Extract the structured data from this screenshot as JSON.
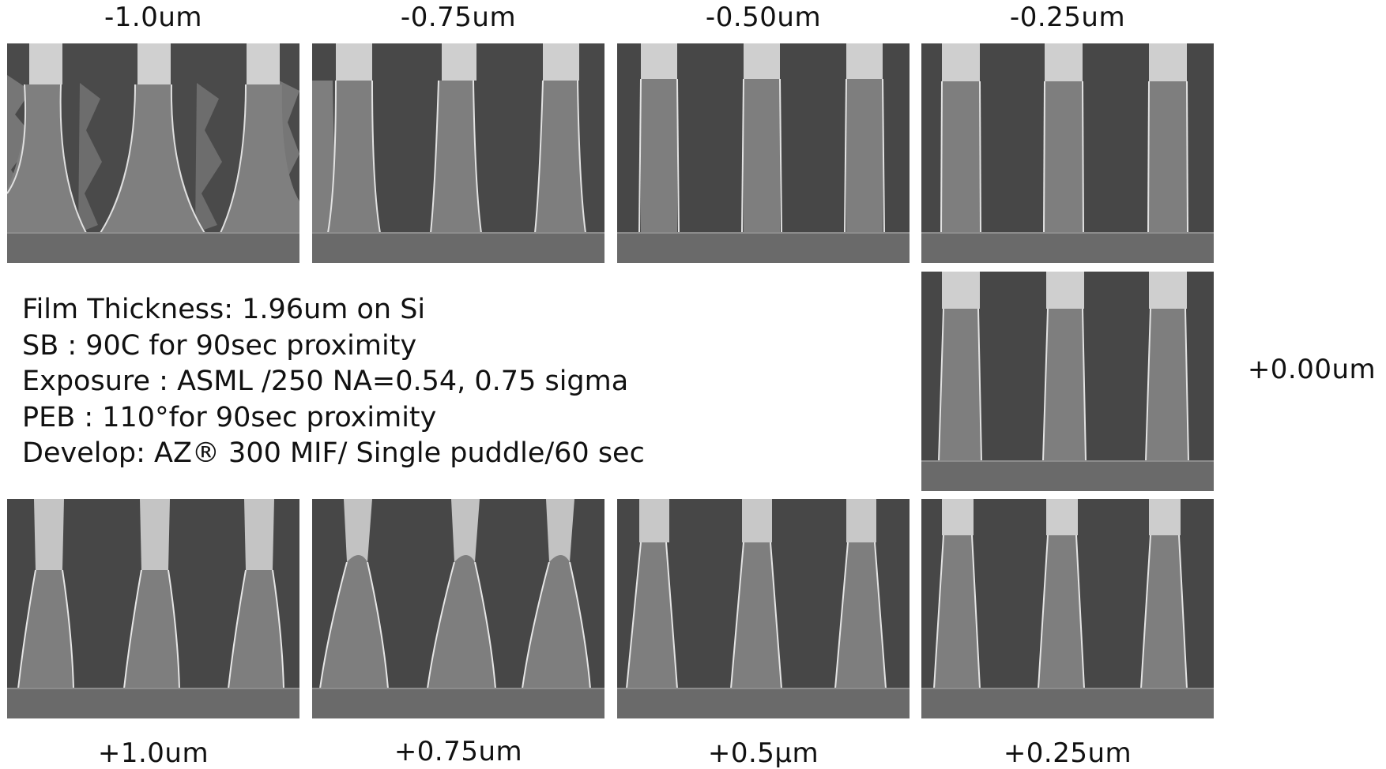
{
  "focus_labels": {
    "m100": "-1.0um",
    "m075": "-0.75um",
    "m050": "-0.50um",
    "m025": "-0.25um",
    "p000": "+0.00um",
    "p100": "+1.0um",
    "p075": "+0.75um",
    "p050": "+0.5μm",
    "p025": "+0.25um"
  },
  "process_notes": [
    "Film Thickness: 1.96um on Si",
    "SB :  90C for 90sec proximity",
    "Exposure : ASML /250  NA=0.54, 0.75 sigma",
    "PEB :  110°for 90sec proximity",
    "Develop: AZ® 300 MIF/ Single puddle/60 sec"
  ],
  "panels": [
    {
      "focus_um": -1.0,
      "profile": "strongly-flared-rough-sidewalls"
    },
    {
      "focus_um": -0.75,
      "profile": "slightly-flared"
    },
    {
      "focus_um": -0.5,
      "profile": "vertical"
    },
    {
      "focus_um": -0.25,
      "profile": "vertical"
    },
    {
      "focus_um": 0.0,
      "profile": "vertical-slight-taper"
    },
    {
      "focus_um": 1.0,
      "profile": "tapered-rough-top"
    },
    {
      "focus_um": 0.75,
      "profile": "strongly-tapered-rough-top"
    },
    {
      "focus_um": 0.5,
      "profile": "tapered"
    },
    {
      "focus_um": 0.25,
      "profile": "slightly-tapered"
    }
  ],
  "colors": {
    "background": "#ffffff",
    "sem_trench": "#484848",
    "sem_line": "#7e7e7e",
    "sem_top": "#c8c8c8",
    "sem_edge": "#e2e2e2",
    "sem_substrate": "#6a6a6a"
  }
}
